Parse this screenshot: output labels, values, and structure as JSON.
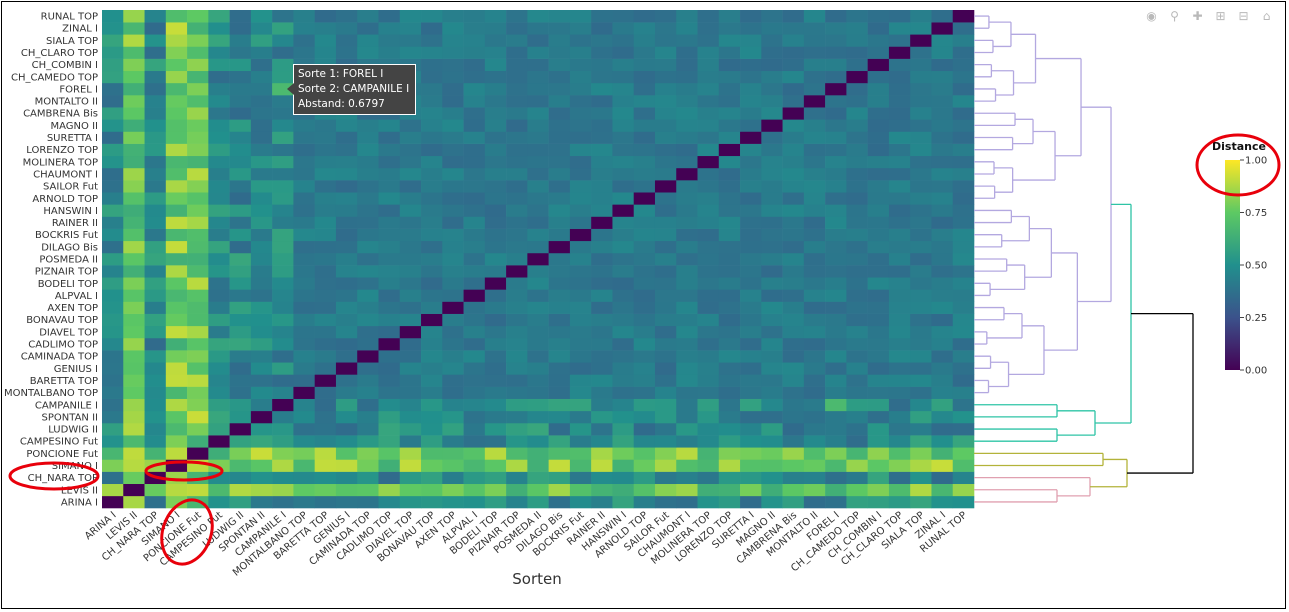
{
  "chart_data": {
    "type": "heatmap",
    "xlabel": "Sorten",
    "ylabel": "",
    "colorbar": {
      "title": "Distance",
      "ticks": [
        "0.00",
        "0.25",
        "0.50",
        "0.75",
        "1.00"
      ],
      "range": [
        0,
        1
      ],
      "colorscale": "viridis"
    },
    "varieties": [
      "ARINA I",
      "LEVIS II",
      "CH_NARA TOP",
      "SIMANO I",
      "PONCIONE Fut",
      "CAMPESINO Fut",
      "LUDWIG II",
      "SPONTAN II",
      "CAMPANILE I",
      "MONTALBANO TOP",
      "BARETTA TOP",
      "GENIUS I",
      "CAMINADA TOP",
      "CADLIMO TOP",
      "DIAVEL TOP",
      "BONAVAU TOP",
      "AXEN TOP",
      "ALPVAL I",
      "BODELI TOP",
      "PIZNAIR TOP",
      "POSMEDA II",
      "DILAGO Bis",
      "BOCKRIS Fut",
      "RAINER II",
      "HANSWIN I",
      "ARNOLD TOP",
      "SAILOR Fut",
      "CHAUMONT I",
      "MOLINERA TOP",
      "LORENZO TOP",
      "SURETTA I",
      "MAGNO II",
      "CAMBRENA Bis",
      "MONTALTO II",
      "FOREL I",
      "CH_CAMEDO TOP",
      "CH_COMBIN I",
      "CH_CLARO TOP",
      "SIALA TOP",
      "ZINAL I",
      "RUNAL TOP"
    ],
    "x_tick_labels": [
      "ARINA I",
      "LEVIS II",
      "CH_NARA TOP",
      "SIMANO I",
      "PONCIONE Fut",
      "CAMPESINO Fut",
      "LUDWIG II",
      "SPONTAN II",
      "CAMPANILE I",
      "MONTALBANO TOP",
      "BARETTA TOP",
      "GENIUS I",
      "CAMINADA TOP",
      "CADLIMO TOP",
      "DIAVEL TOP",
      "BONAVAU TOP",
      "AXEN TOP",
      "ALPVAL I",
      "BODELI TOP",
      "PIZNAIR TOP",
      "POSMEDA II",
      "DILAGO Bis",
      "BOCKRIS Fut",
      "RAINER II",
      "HANSWIN I",
      "ARNOLD TOP",
      "SAILOR Fut",
      "CHAUMONT I",
      "MOLINERA TOP",
      "LORENZO TOP",
      "SURETTA I",
      "MAGNO II",
      "CAMBRENA Bis",
      "MONTALTO II",
      "FOREL I",
      "CH_CAMEDO TOP",
      "CH_COMBIN I",
      "CH_CLARO TOP",
      "SIALA TOP",
      "ZINAL I",
      "RUNAL TOP"
    ],
    "y_tick_labels": [
      "ARINA I",
      "LEVIS II",
      "CH_NARA TOP",
      "SIMANO I",
      "PONCIONE Fut",
      "CAMPESINO Fut",
      "LUDWIG II",
      "SPONTAN II",
      "CAMPANILE I",
      "MONTALBANO TOP",
      "BARETTA TOP",
      "GENIUS I",
      "CAMINADA TOP",
      "CADLIMO TOP",
      "DIAVEL TOP",
      "BONAVAU TOP",
      "AXEN TOP",
      "ALPVAL I",
      "BODELI TOP",
      "PIZNAIR TOP",
      "POSMEDA II",
      "DILAGO Bis",
      "BOCKRIS Fut",
      "RAINER II",
      "HANSWIN I",
      "ARNOLD TOP",
      "SAILOR Fut",
      "CHAUMONT I",
      "MOLINERA TOP",
      "LORENZO TOP",
      "SURETTA I",
      "MAGNO II",
      "CAMBRENA Bis",
      "MONTALTO II",
      "FOREL I",
      "CH_CAMEDO TOP",
      "CH_COMBIN I",
      "CH_CLARO TOP",
      "SIALA TOP",
      "ZINAL I",
      "RUNAL TOP"
    ],
    "diagonal_value": 0.0,
    "typical_off_diagonal_range": [
      0.35,
      0.6
    ],
    "high_distance_varieties": [
      "SIMANO I",
      "PONCIONE Fut",
      "LEVIS II"
    ],
    "low_distance_block": {
      "from": "MONTALBANO TOP",
      "to": "RUNAL TOP",
      "approx_value": 0.35
    },
    "clusters": [
      {
        "color": "#b3a8e0",
        "members_from": "MONTALBANO TOP",
        "members_to": "RUNAL TOP"
      },
      {
        "color": "#2ec4a6",
        "members": [
          "CAMPANILE I",
          "SPONTAN II",
          "LUDWIG II",
          "CAMPESINO Fut"
        ]
      },
      {
        "color": "#b3b33a",
        "members": [
          "PONCIONE Fut",
          "SIMANO I"
        ]
      },
      {
        "color": "#e0a0b0",
        "members": [
          "CH_NARA TOP",
          "LEVIS II",
          "ARINA I"
        ]
      }
    ]
  },
  "tooltip": {
    "line1": "Sorte 1: FOREL I",
    "line2": "Sorte 2: CAMPANILE I",
    "line3": "Abstand: 0.6797",
    "selected": [
      "FOREL I",
      "CAMPANILE I"
    ],
    "value": 0.6797
  },
  "toolbar": [
    "camera-icon",
    "zoom-icon",
    "pan-icon",
    "zoom-in-icon",
    "zoom-out-icon",
    "home-icon"
  ],
  "annotations": {
    "color": "#e8000b",
    "circled": [
      "Distance colorbar top",
      "CH_NARA TOP label",
      "SIMANO I row cells",
      "SIMANO I / PONCIONE Fut x labels"
    ]
  }
}
